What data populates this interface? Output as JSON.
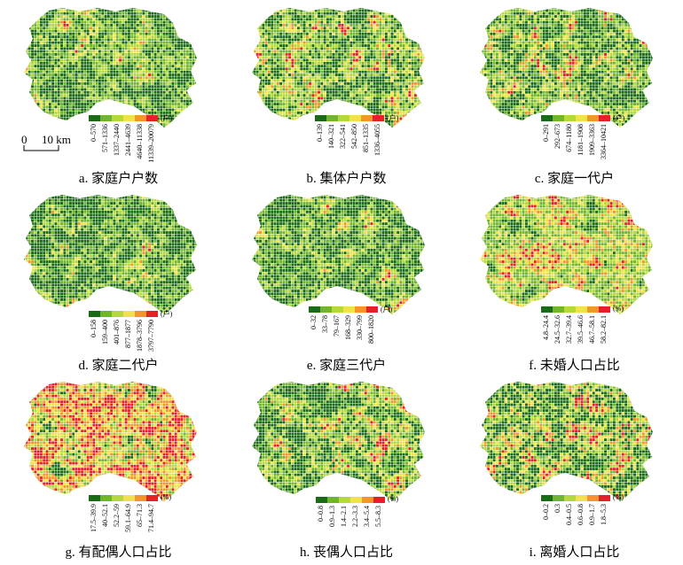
{
  "panels": [
    {
      "id": "a",
      "caption": "a. 家庭户户数",
      "unit": "(户)",
      "classes": [
        "0–570",
        "571–1336",
        "1337–2440",
        "2441–4639",
        "4640–11338",
        "11339–20079"
      ],
      "colors": [
        "#1a6b15",
        "#71b52c",
        "#b5d93c",
        "#f1e14a",
        "#f2962c",
        "#e5202a"
      ],
      "weights": [
        38,
        34,
        22,
        4,
        1.5,
        0.5
      ]
    },
    {
      "id": "b",
      "caption": "b. 集体户户数",
      "unit": "(户)",
      "classes": [
        "0–139",
        "140–321",
        "322–541",
        "542–850",
        "851–1335",
        "1336–4055"
      ],
      "colors": [
        "#1a6b15",
        "#71b52c",
        "#b5d93c",
        "#f1e14a",
        "#f2962c",
        "#e5202a"
      ],
      "weights": [
        30,
        28,
        22,
        12,
        5,
        3
      ]
    },
    {
      "id": "c",
      "caption": "c. 家庭一代户",
      "unit": "(户)",
      "classes": [
        "0–291",
        "292–673",
        "674–1180",
        "1181–1908",
        "1909–3363",
        "3364–10421"
      ],
      "colors": [
        "#1a6b15",
        "#71b52c",
        "#b5d93c",
        "#f1e14a",
        "#f2962c",
        "#e5202a"
      ],
      "weights": [
        32,
        32,
        20,
        9,
        5,
        2
      ]
    },
    {
      "id": "d",
      "caption": "d. 家庭二代户",
      "unit": "(户)",
      "classes": [
        "0–158",
        "159–400",
        "401–876",
        "877–1877",
        "1878–3796",
        "3797–7790"
      ],
      "colors": [
        "#1a6b15",
        "#71b52c",
        "#b5d93c",
        "#f1e14a",
        "#f2962c",
        "#e5202a"
      ],
      "weights": [
        45,
        33,
        16,
        4,
        1.5,
        0.5
      ]
    },
    {
      "id": "e",
      "caption": "e. 家庭三代户",
      "unit": "(户)",
      "classes": [
        "0–32",
        "33–78",
        "79–167",
        "168–329",
        "330–799",
        "800–1820"
      ],
      "colors": [
        "#1a6b15",
        "#71b52c",
        "#b5d93c",
        "#f1e14a",
        "#f2962c",
        "#e5202a"
      ],
      "weights": [
        44,
        32,
        17,
        5,
        1.5,
        0.5
      ]
    },
    {
      "id": "f",
      "caption": "f. 未婚人口占比",
      "unit": "(%)",
      "classes": [
        "4.8–24.4",
        "24.5–32.6",
        "32.7–39.4",
        "39.5–46.6",
        "46.7–58.1",
        "58.2–82.1"
      ],
      "colors": [
        "#1a6b15",
        "#71b52c",
        "#b5d93c",
        "#f1e14a",
        "#f2962c",
        "#e5202a"
      ],
      "weights": [
        6,
        30,
        28,
        18,
        12,
        6
      ]
    },
    {
      "id": "g",
      "caption": "g. 有配偶人口占比",
      "unit": "(%)",
      "classes": [
        "17.5–39.9",
        "40–52.1",
        "52.2–59",
        "59.1–64.9",
        "65–71.3",
        "71.4–94.7"
      ],
      "colors": [
        "#1a6b15",
        "#71b52c",
        "#b5d93c",
        "#f1e14a",
        "#f2962c",
        "#e5202a"
      ],
      "weights": [
        4,
        8,
        16,
        22,
        26,
        24
      ]
    },
    {
      "id": "h",
      "caption": "h. 丧偶人口占比",
      "unit": "(%)",
      "classes": [
        "0–0.8",
        "0.9–1.3",
        "1.4–2.1",
        "2.2–3.3",
        "3.4–5.4",
        "5.5–8.3"
      ],
      "colors": [
        "#1a6b15",
        "#71b52c",
        "#b5d93c",
        "#f1e14a",
        "#f2962c",
        "#e5202a"
      ],
      "weights": [
        34,
        28,
        20,
        10,
        5,
        3
      ]
    },
    {
      "id": "i",
      "caption": "i. 离婚人口占比",
      "unit": "(%)",
      "classes": [
        "0–0.2",
        "0.3",
        "0.4–0.5",
        "0.6–0.8",
        "0.9–1.7",
        "1.8–5.3"
      ],
      "colors": [
        "#1a6b15",
        "#71b52c",
        "#b5d93c",
        "#f1e14a",
        "#f2962c",
        "#e5202a"
      ],
      "weights": [
        38,
        18,
        20,
        12,
        8,
        4
      ]
    }
  ],
  "scalebar": {
    "zero": "0",
    "distance": "10 km"
  }
}
